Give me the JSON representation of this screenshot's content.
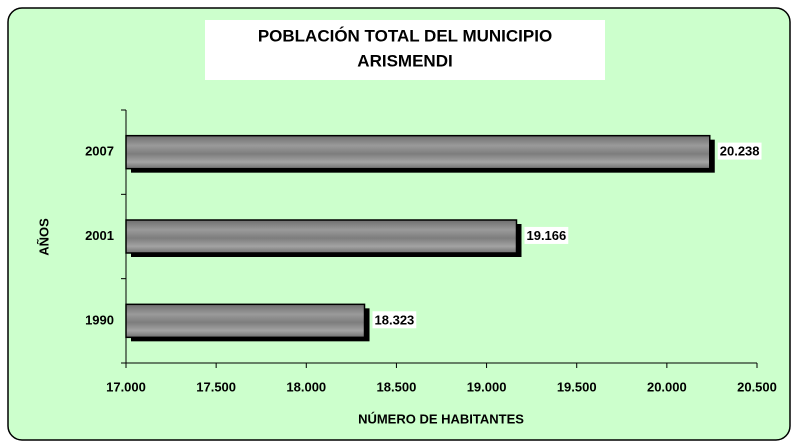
{
  "chart_data": {
    "type": "hbar",
    "title": "POBLACIÓN TOTAL DEL MUNICIPIO",
    "subtitle": "ARISMENDI",
    "x_label": "NÚMERO DE HABITANTES",
    "y_label": "AÑOS",
    "categories": [
      "1990",
      "2001",
      "2007"
    ],
    "values": [
      18323,
      19166,
      20238
    ],
    "value_labels": [
      "18.323",
      "19.166",
      "20.238"
    ],
    "color": "#808080",
    "background": "#ccffcc",
    "xlim": [
      17000,
      20500
    ],
    "xticks": [
      {
        "value": 17000,
        "label": "17.000"
      },
      {
        "value": 17500,
        "label": "17.500"
      },
      {
        "value": 18000,
        "label": "18.000"
      },
      {
        "value": 18500,
        "label": "18.500"
      },
      {
        "value": 19000,
        "label": "19.000"
      },
      {
        "value": 19500,
        "label": "19.500"
      },
      {
        "value": 20000,
        "label": "20.000"
      },
      {
        "value": 20500,
        "label": "20.500"
      }
    ]
  }
}
